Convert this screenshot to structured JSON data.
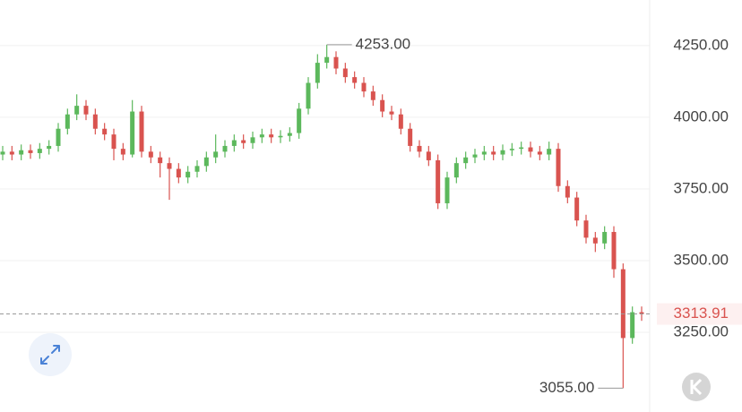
{
  "chart_data": {
    "type": "candlestick",
    "open": [
      3870,
      3880,
      3870,
      3885,
      3875,
      3890,
      3900,
      3960,
      4010,
      4040,
      4010,
      3960,
      3940,
      3890,
      3870,
      4020,
      3880,
      3860,
      3840,
      3820,
      3790,
      3810,
      3830,
      3860,
      3880,
      3900,
      3920,
      3910,
      3930,
      3940,
      3930,
      3935,
      3945,
      4030,
      4120,
      4190,
      4210,
      4170,
      4140,
      4120,
      4090,
      4060,
      4020,
      4010,
      3960,
      3900,
      3880,
      3850,
      3700,
      3790,
      3840,
      3860,
      3870,
      3880,
      3870,
      3885,
      3890,
      3895,
      3880,
      3870,
      3890,
      3760,
      3720,
      3640,
      3580,
      3560,
      3600,
      3470,
      3230,
      3320
    ],
    "high": [
      3900,
      3900,
      3905,
      3905,
      3910,
      3920,
      3980,
      4030,
      4080,
      4060,
      4030,
      3980,
      3960,
      3910,
      4060,
      4040,
      3900,
      3880,
      3860,
      3840,
      3830,
      3850,
      3880,
      3940,
      3920,
      3940,
      3940,
      3950,
      3960,
      3960,
      3955,
      3965,
      4050,
      4140,
      4220,
      4253,
      4230,
      4190,
      4160,
      4140,
      4110,
      4080,
      4040,
      4030,
      3980,
      3920,
      3900,
      3870,
      3810,
      3860,
      3880,
      3890,
      3900,
      3900,
      3905,
      3910,
      3915,
      3915,
      3900,
      3915,
      3910,
      3780,
      3740,
      3660,
      3600,
      3620,
      3620,
      3490,
      3340,
      3340
    ],
    "low": [
      3850,
      3850,
      3850,
      3855,
      3855,
      3870,
      3880,
      3940,
      3990,
      3990,
      3940,
      3920,
      3850,
      3850,
      3860,
      3860,
      3840,
      3790,
      3712,
      3770,
      3770,
      3790,
      3810,
      3840,
      3860,
      3880,
      3890,
      3890,
      3910,
      3910,
      3910,
      3915,
      3925,
      4010,
      4100,
      4170,
      4150,
      4120,
      4100,
      4070,
      4040,
      4000,
      3990,
      3940,
      3880,
      3860,
      3830,
      3680,
      3680,
      3770,
      3820,
      3840,
      3850,
      3850,
      3850,
      3865,
      3870,
      3860,
      3850,
      3850,
      3740,
      3700,
      3620,
      3560,
      3530,
      3540,
      3440,
      3055,
      3210,
      3290
    ],
    "close": [
      3880,
      3870,
      3885,
      3875,
      3890,
      3900,
      3960,
      4010,
      4040,
      4010,
      3960,
      3940,
      3890,
      3870,
      4020,
      3880,
      3860,
      3840,
      3820,
      3790,
      3810,
      3830,
      3860,
      3880,
      3900,
      3920,
      3910,
      3930,
      3940,
      3930,
      3935,
      3945,
      4030,
      4120,
      4190,
      4210,
      4170,
      4140,
      4120,
      4090,
      4060,
      4020,
      4010,
      3960,
      3900,
      3880,
      3850,
      3700,
      3790,
      3840,
      3860,
      3870,
      3880,
      3870,
      3885,
      3890,
      3895,
      3880,
      3870,
      3890,
      3760,
      3720,
      3640,
      3580,
      3560,
      3600,
      3470,
      3230,
      3320,
      3313.91
    ],
    "up_color": "#5cb85c",
    "down_color": "#d9534f",
    "ylim": [
      2972,
      4409
    ],
    "yticks": [
      {
        "value": 3250,
        "label": "3250.00"
      },
      {
        "value": 3500,
        "label": "3500.00"
      },
      {
        "value": 3750,
        "label": "3750.00"
      },
      {
        "value": 4000,
        "label": "4000.00"
      },
      {
        "value": 4250,
        "label": "4250.00"
      }
    ],
    "grid": true,
    "annotations": [
      {
        "value": 4253,
        "label": "4253.00"
      },
      {
        "value": 3055,
        "label": "3055.00"
      }
    ]
  }
}
